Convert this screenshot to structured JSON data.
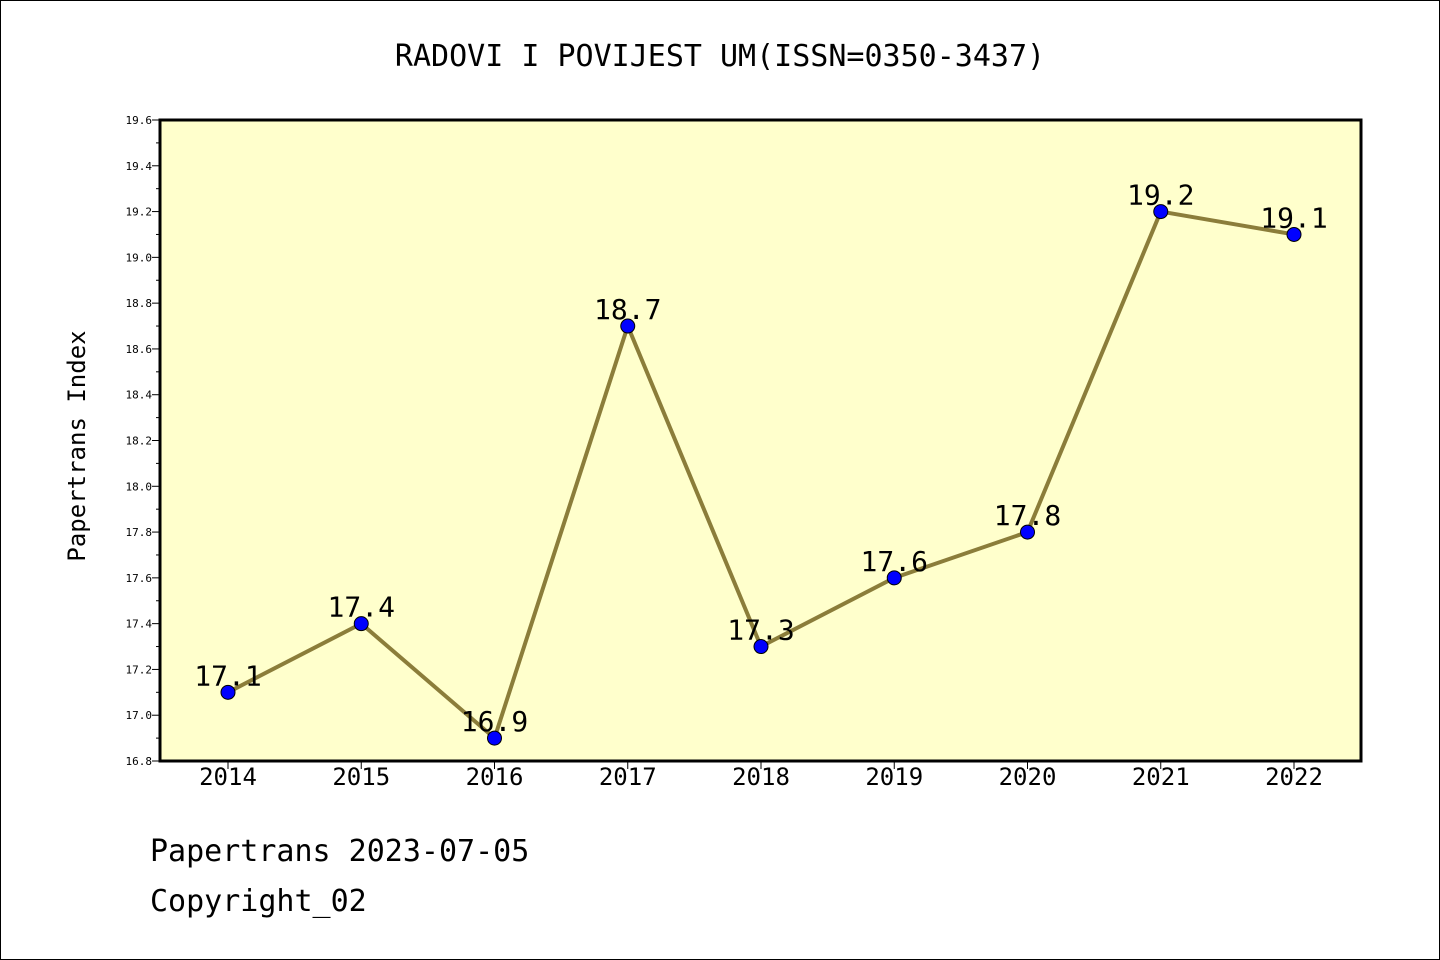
{
  "chart_data": {
    "type": "line",
    "title": "RADOVI I POVIJEST UM(ISSN=0350-3437)",
    "xlabel": "",
    "ylabel": "Papertrans Index",
    "categories": [
      "2014",
      "2015",
      "2016",
      "2017",
      "2018",
      "2019",
      "2020",
      "2021",
      "2022"
    ],
    "series": [
      {
        "values": [
          17.1,
          17.4,
          16.9,
          18.7,
          17.3,
          17.6,
          17.8,
          19.2,
          19.1
        ],
        "labels": [
          "17.1",
          "17.4",
          "16.9",
          "18.7",
          "17.3",
          "17.6",
          "17.8",
          "19.2",
          "19.1"
        ]
      }
    ],
    "ylim": [
      16.8,
      19.6
    ],
    "yticks": [
      "16.8",
      "17.0",
      "17.2",
      "17.4",
      "17.6",
      "17.8",
      "18.0",
      "18.2",
      "18.4",
      "18.6",
      "18.8",
      "19.0",
      "19.2",
      "19.4",
      "19.6"
    ],
    "grid": false,
    "colors": {
      "plot_background": "#ffffcc",
      "line": "#8b7d3a",
      "marker": "#0000ff"
    }
  },
  "footer": {
    "date_text": "Papertrans 2023-07-05",
    "copyright_text": "Copyright_02"
  }
}
